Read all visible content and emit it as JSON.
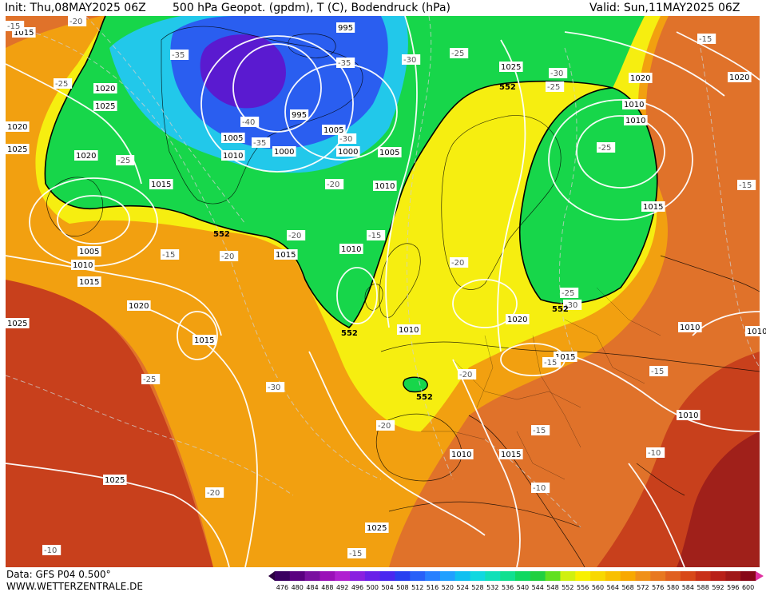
{
  "header": {
    "init": "Init: Thu,08MAY2025 06Z",
    "title": "500 hPa Geopot. (gpdm), T (C), Bodendruck (hPa)",
    "valid": "Valid: Sun,11MAY2025 06Z"
  },
  "footer": {
    "data_source": "Data: GFS P04 0.500°",
    "website": "WWW.WETTERZENTRALE.DE"
  },
  "colors": {
    "deep_low": "#5a1ad0",
    "blue": "#2a5ef0",
    "cyan": "#22c8ea",
    "green": "#17d64a",
    "yellow": "#f6ee10",
    "orange": "#f2a010",
    "dark_orange": "#e0722a",
    "red": "#c8401c",
    "dark_red": "#a0201a",
    "isobar": "#ffffff",
    "contour_552": "#000000"
  },
  "legend": {
    "values": [
      "476",
      "480",
      "484",
      "488",
      "492",
      "496",
      "500",
      "504",
      "508",
      "512",
      "516",
      "520",
      "524",
      "528",
      "532",
      "536",
      "540",
      "544",
      "548",
      "552",
      "556",
      "560",
      "564",
      "568",
      "572",
      "576",
      "580",
      "584",
      "588",
      "592",
      "596",
      "600"
    ],
    "colors": [
      "#3a0060",
      "#5a0080",
      "#7a10a0",
      "#9a10b8",
      "#b020d0",
      "#8a20e0",
      "#6a20e8",
      "#4a28f0",
      "#2840f0",
      "#2860f8",
      "#2880ff",
      "#20a0ff",
      "#10c0f0",
      "#10d8e0",
      "#10e0b8",
      "#10e090",
      "#10d860",
      "#20d040",
      "#60e020",
      "#d0f010",
      "#f8f000",
      "#f8d800",
      "#f8c000",
      "#f8a800",
      "#f09018",
      "#e87820",
      "#e06020",
      "#d84818",
      "#c83018",
      "#b82018",
      "#a01818",
      "#880818"
    ]
  },
  "map": {
    "pressure_labels": [
      "1015",
      "1020",
      "1025",
      "1020",
      "1005",
      "1010",
      "1015",
      "1020",
      "1025",
      "1025",
      "995",
      "995",
      "1005",
      "1000",
      "1005",
      "1000",
      "1005",
      "1010",
      "1010",
      "1015",
      "1025",
      "1010",
      "1020",
      "1010",
      "1015",
      "1015",
      "1020",
      "1020",
      "1015",
      "1010",
      "1015",
      "1010",
      "1010",
      "1015",
      "1025",
      "1020",
      "1010",
      "1010",
      "1010",
      "1025"
    ],
    "temp_labels": [
      "-20",
      "-15",
      "-25",
      "-35",
      "-35",
      "-30",
      "-25",
      "-40",
      "-35",
      "-30",
      "-30",
      "-25",
      "-25",
      "-25",
      "-20",
      "-15",
      "-20",
      "-20",
      "-20",
      "-15",
      "-15",
      "-20",
      "-25",
      "-30",
      "-30",
      "-25",
      "-20",
      "-15",
      "-15",
      "-15",
      "-10",
      "-10",
      "-15",
      "-10",
      "-20",
      "-15"
    ],
    "geopot_labels": [
      "552",
      "552",
      "552",
      "552",
      "552"
    ]
  }
}
